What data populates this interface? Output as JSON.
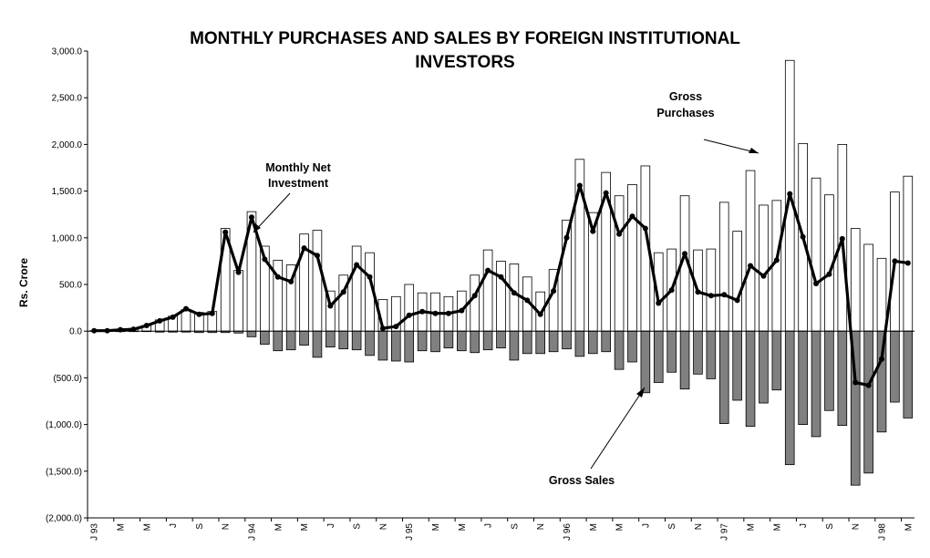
{
  "chart_data": {
    "type": "bar",
    "title_line1": "MONTHLY PURCHASES AND SALES BY FOREIGN INSTITUTIONAL",
    "title_line2": "INVESTORS",
    "ylabel": "Rs. Crore",
    "xlabel": "",
    "ylim": [
      -2000,
      3000
    ],
    "ytick_step": 500,
    "ytick_labels": [
      "(2,000.0)",
      "(1,500.0)",
      "(1,000.0)",
      "(500.0)",
      "0.0",
      "500.0",
      "1,000.0",
      "1,500.0",
      "2,000.0",
      "2,500.0",
      "3,000.0"
    ],
    "x_tick_labels": [
      "J 93",
      "M",
      "M",
      "J",
      "S",
      "N",
      "J 94",
      "M",
      "M",
      "J",
      "S",
      "N",
      "J 95",
      "M",
      "M",
      "J",
      "S",
      "N",
      "J 96",
      "M",
      "M",
      "J",
      "S",
      "N",
      "J 97",
      "M",
      "M",
      "J",
      "S",
      "N",
      "J 98",
      "M"
    ],
    "x_tick_every": 2,
    "grid": false,
    "legend": "none",
    "series": [
      {
        "name": "Gross Purchases",
        "kind": "bar",
        "values": [
          5,
          10,
          15,
          30,
          60,
          120,
          160,
          230,
          200,
          210,
          1100,
          650,
          1280,
          910,
          760,
          710,
          1040,
          1080,
          430,
          600,
          910,
          840,
          340,
          370,
          500,
          410,
          410,
          370,
          430,
          600,
          870,
          750,
          720,
          580,
          420,
          660,
          1190,
          1840,
          1270,
          1700,
          1450,
          1570,
          1770,
          840,
          880,
          1450,
          870,
          880,
          1380,
          1070,
          1720,
          1350,
          1400,
          2900,
          2010,
          1640,
          1460,
          2000,
          1100,
          930,
          780,
          1490,
          1660
        ]
      },
      {
        "name": "Gross Sales",
        "kind": "bar",
        "values": [
          0,
          0,
          -5,
          -5,
          -5,
          -10,
          -10,
          -10,
          -15,
          -15,
          -15,
          -20,
          -60,
          -140,
          -210,
          -200,
          -150,
          -280,
          -170,
          -190,
          -200,
          -260,
          -310,
          -320,
          -330,
          -210,
          -220,
          -180,
          -210,
          -230,
          -200,
          -180,
          -310,
          -240,
          -240,
          -220,
          -190,
          -270,
          -240,
          -220,
          -410,
          -330,
          -660,
          -550,
          -440,
          -620,
          -460,
          -510,
          -990,
          -740,
          -1020,
          -770,
          -630,
          -1430,
          -1000,
          -1130,
          -850,
          -1010,
          -1650,
          -1520,
          -1080,
          -760,
          -930
        ]
      },
      {
        "name": "Monthly Net Investment",
        "kind": "line",
        "values": [
          5,
          5,
          15,
          20,
          60,
          110,
          150,
          240,
          180,
          190,
          1060,
          630,
          1220,
          770,
          580,
          530,
          890,
          810,
          270,
          420,
          710,
          580,
          30,
          50,
          170,
          210,
          190,
          190,
          220,
          380,
          650,
          580,
          410,
          330,
          180,
          430,
          1000,
          1560,
          1070,
          1480,
          1040,
          1230,
          1100,
          300,
          440,
          830,
          420,
          380,
          390,
          330,
          700,
          590,
          760,
          1470,
          1010,
          510,
          610,
          990,
          -550,
          -580,
          -300,
          750,
          730
        ]
      }
    ],
    "annotations": [
      {
        "text_line1": "Gross",
        "text_line2": "Purchases"
      },
      {
        "text_line1": "Monthly Net",
        "text_line2": "Investment"
      },
      {
        "text_line1": "Gross Sales"
      }
    ]
  }
}
